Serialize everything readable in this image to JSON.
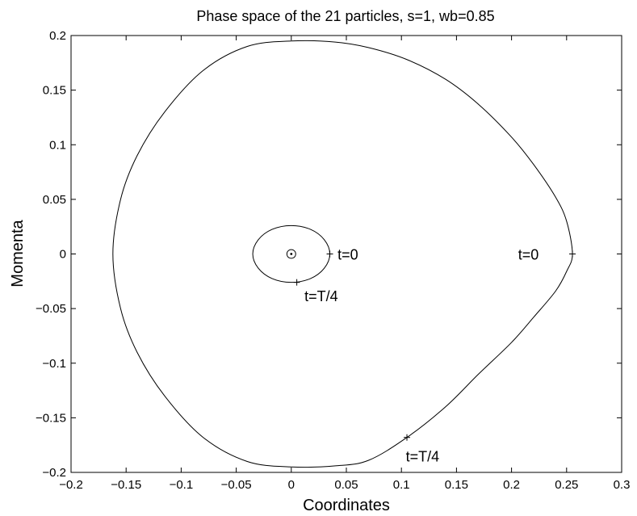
{
  "chart_data": {
    "type": "line",
    "title": "Phase space of the 21 particles, s=1, wb=0.85",
    "xlabel": "Coordinates",
    "ylabel": "Momenta",
    "xlim": [
      -0.2,
      0.3
    ],
    "ylim": [
      -0.2,
      0.2
    ],
    "xticks": [
      -0.2,
      -0.15,
      -0.1,
      -0.05,
      0,
      0.05,
      0.1,
      0.15,
      0.2,
      0.25,
      0.3
    ],
    "xtick_labels": [
      "−0.2",
      "−0.15",
      "−0.1",
      "−0.05",
      "0",
      "0.05",
      "0.1",
      "0.15",
      "0.2",
      "0.25",
      "0.3"
    ],
    "yticks": [
      -0.2,
      -0.15,
      -0.1,
      -0.05,
      0,
      0.05,
      0.1,
      0.15,
      0.2
    ],
    "ytick_labels": [
      "−0.2",
      "−0.15",
      "−0.1",
      "−0.05",
      "0",
      "0.05",
      "0.1",
      "0.15",
      "0.2"
    ],
    "grid": false,
    "color": "#000000",
    "orbits": [
      {
        "x": [
          0.2553,
          0.25,
          0.24,
          0.22,
          0.2,
          0.17,
          0.14,
          0.105,
          0.07,
          0.04,
          0.0,
          -0.04,
          -0.08,
          -0.115,
          -0.14,
          -0.155,
          -0.162,
          -0.155,
          -0.14,
          -0.115,
          -0.08,
          -0.04,
          0.0,
          0.04,
          0.07,
          0.105,
          0.14,
          0.17,
          0.2,
          0.22,
          0.24,
          0.25,
          0.2553
        ],
        "y": [
          0.0,
          0.03,
          0.052,
          0.082,
          0.107,
          0.137,
          0.16,
          0.178,
          0.189,
          0.194,
          0.195,
          0.19,
          0.168,
          0.13,
          0.09,
          0.05,
          0.0,
          -0.05,
          -0.09,
          -0.13,
          -0.168,
          -0.19,
          -0.195,
          -0.194,
          -0.189,
          -0.168,
          -0.14,
          -0.11,
          -0.081,
          -0.058,
          -0.034,
          -0.016,
          0.0
        ]
      },
      {
        "x": [
          0.035,
          0.03,
          0.0175,
          0.0,
          -0.0175,
          -0.03,
          -0.035,
          -0.03,
          -0.0175,
          0.0,
          0.0175,
          0.03,
          0.035
        ],
        "y": [
          0.0,
          0.013,
          0.0225,
          0.026,
          0.0225,
          0.013,
          0.0,
          -0.013,
          -0.0225,
          -0.026,
          -0.0225,
          -0.013,
          0.0
        ]
      },
      {
        "x": [
          0.004,
          0.0035,
          0.002,
          0.0,
          -0.002,
          -0.0035,
          -0.004,
          -0.0035,
          -0.002,
          0.0,
          0.002,
          0.0035,
          0.004
        ],
        "y": [
          0.0,
          0.002,
          0.0035,
          0.004,
          0.0035,
          0.002,
          0.0,
          -0.002,
          -0.0035,
          -0.004,
          -0.0035,
          -0.002,
          0.0
        ]
      }
    ],
    "center_point": {
      "x": 0.0,
      "y": 0.0
    },
    "markers": [
      {
        "x": 0.2553,
        "y": 0.0
      },
      {
        "x": 0.105,
        "y": -0.168
      },
      {
        "x": 0.035,
        "y": 0.0
      },
      {
        "x": 0.005,
        "y": -0.026
      }
    ],
    "annotations": [
      {
        "text": "t=0",
        "x": 0.206,
        "y": 0.0
      },
      {
        "text": "t=T/4",
        "x": 0.104,
        "y": -0.185
      },
      {
        "text": "t=0",
        "x": 0.042,
        "y": 0.0
      },
      {
        "text": "t=T/4",
        "x": 0.012,
        "y": -0.038
      }
    ]
  }
}
